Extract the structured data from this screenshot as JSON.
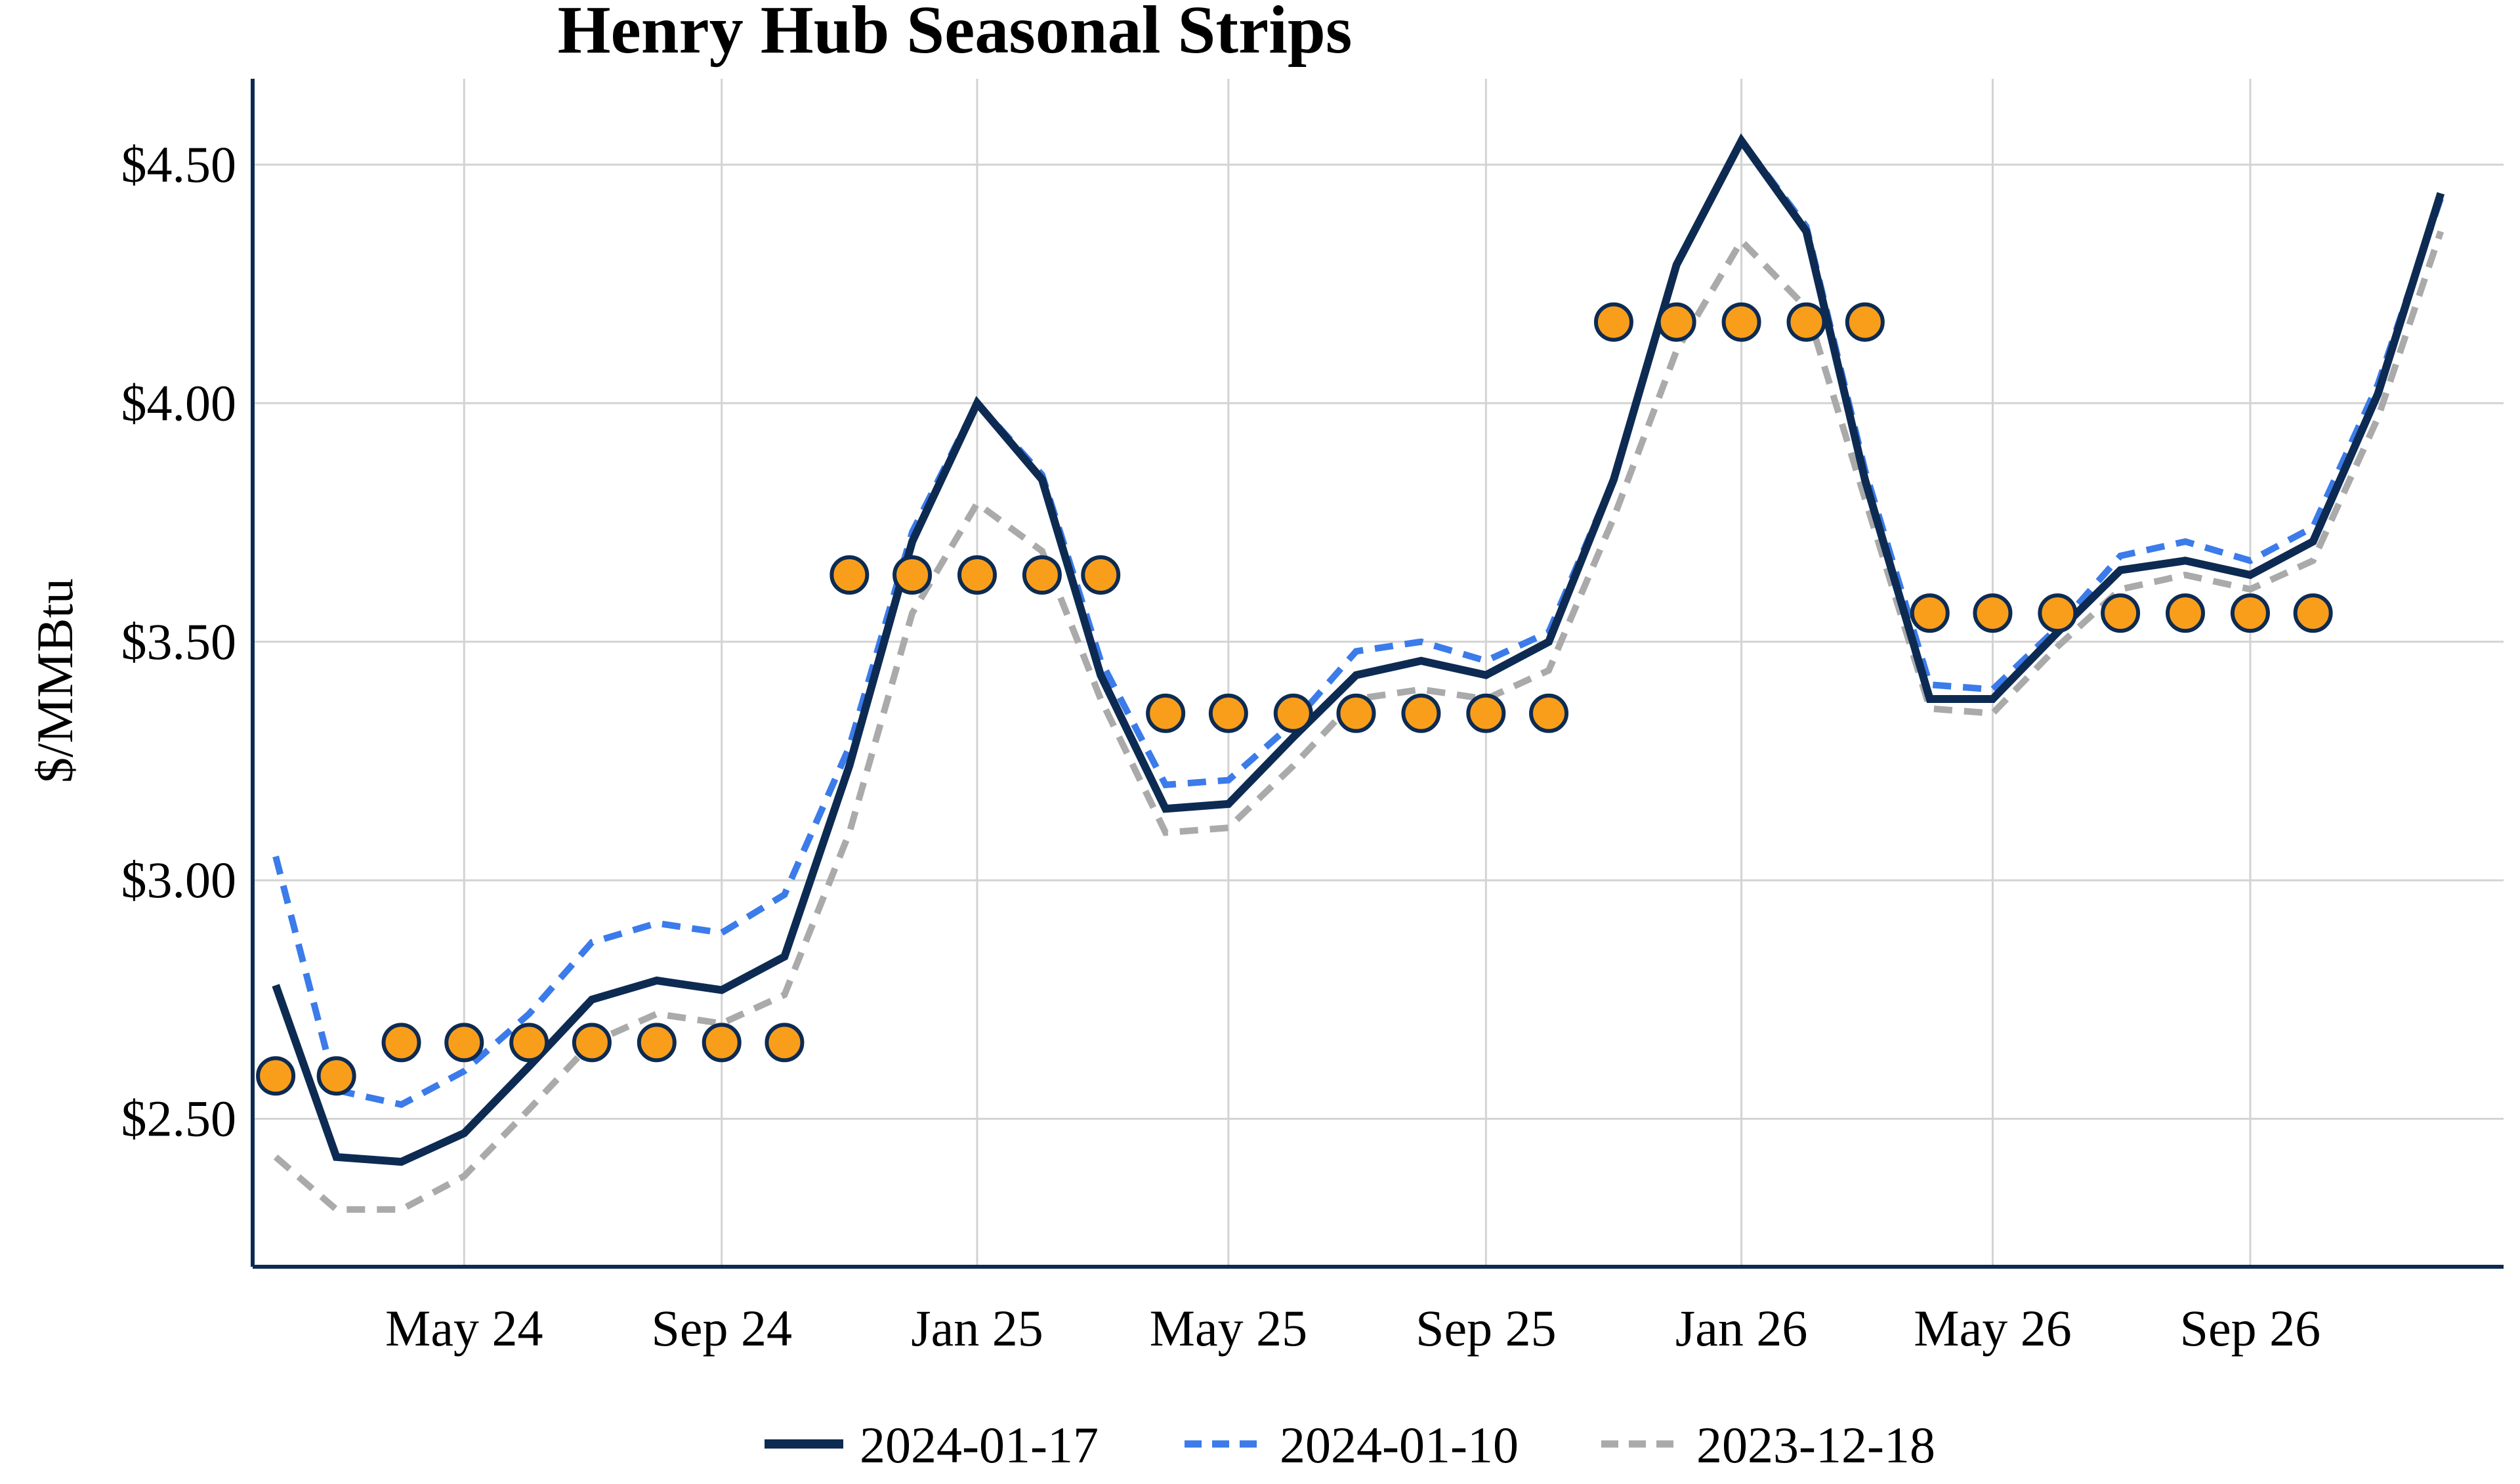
{
  "chart_data": {
    "type": "line",
    "title": "Henry Hub Seasonal Strips",
    "ylabel": "$/MMBtu",
    "xlabel": "",
    "x_start": "2024-02",
    "x_ticks": [
      {
        "date": "2024-05",
        "label": "May 24"
      },
      {
        "date": "2024-09",
        "label": "Sep 24"
      },
      {
        "date": "2025-01",
        "label": "Jan 25"
      },
      {
        "date": "2025-05",
        "label": "May 25"
      },
      {
        "date": "2025-09",
        "label": "Sep 25"
      },
      {
        "date": "2026-01",
        "label": "Jan 26"
      },
      {
        "date": "2026-05",
        "label": "May 26"
      },
      {
        "date": "2026-09",
        "label": "Sep 26"
      }
    ],
    "y_ticks": [
      2.5,
      3.0,
      3.5,
      4.0,
      4.5
    ],
    "y_tick_labels": [
      "$2.50",
      "$3.00",
      "$3.50",
      "$4.00",
      "$4.50"
    ],
    "ylim": [
      2.19,
      4.68
    ],
    "xlim": [
      "2024-01-21",
      "2026-12-31"
    ],
    "grid": true,
    "legend_position": "bottom",
    "series": [
      {
        "name": "2024-01-17",
        "style": "solid",
        "color": "#0d2b52",
        "x": [
          "2024-02",
          "2024-03",
          "2024-04",
          "2024-05",
          "2024-06",
          "2024-07",
          "2024-08",
          "2024-09",
          "2024-10",
          "2024-11",
          "2024-12",
          "2025-01",
          "2025-02",
          "2025-03",
          "2025-04",
          "2025-05",
          "2025-06",
          "2025-07",
          "2025-08",
          "2025-09",
          "2025-10",
          "2025-11",
          "2025-12",
          "2026-01",
          "2026-02",
          "2026-03",
          "2026-04",
          "2026-05",
          "2026-06",
          "2026-07",
          "2026-08",
          "2026-09",
          "2026-10",
          "2026-11",
          "2026-12"
        ],
        "values": [
          2.78,
          2.42,
          2.41,
          2.47,
          2.61,
          2.75,
          2.79,
          2.77,
          2.84,
          3.24,
          3.71,
          4.0,
          3.84,
          3.43,
          3.15,
          3.16,
          3.3,
          3.43,
          3.46,
          3.43,
          3.5,
          3.84,
          4.29,
          4.55,
          4.36,
          3.84,
          3.38,
          3.38,
          3.52,
          3.65,
          3.67,
          3.64,
          3.71,
          4.02,
          4.44
        ]
      },
      {
        "name": "2024-01-10",
        "style": "dash",
        "color": "#3b7bea",
        "x": [
          "2024-02",
          "2024-03",
          "2024-04",
          "2024-05",
          "2024-06",
          "2024-07",
          "2024-08",
          "2024-09",
          "2024-10",
          "2024-11",
          "2024-12",
          "2025-01",
          "2025-02",
          "2025-03",
          "2025-04",
          "2025-05",
          "2025-06",
          "2025-07",
          "2025-08",
          "2025-09",
          "2025-10",
          "2025-11",
          "2025-12",
          "2026-01",
          "2026-02",
          "2026-03",
          "2026-04",
          "2026-05",
          "2026-06",
          "2026-07",
          "2026-08",
          "2026-09",
          "2026-10",
          "2026-11",
          "2026-12"
        ],
        "values": [
          3.05,
          2.56,
          2.53,
          2.6,
          2.72,
          2.87,
          2.91,
          2.89,
          2.97,
          3.28,
          3.73,
          4.0,
          3.85,
          3.46,
          3.2,
          3.21,
          3.33,
          3.48,
          3.5,
          3.46,
          3.52,
          3.84,
          4.29,
          4.55,
          4.37,
          3.86,
          3.41,
          3.4,
          3.53,
          3.68,
          3.71,
          3.67,
          3.74,
          4.04,
          4.43
        ]
      },
      {
        "name": "2023-12-18",
        "style": "dash",
        "color": "#aaaaaa",
        "x": [
          "2024-02",
          "2024-03",
          "2024-04",
          "2024-05",
          "2024-06",
          "2024-07",
          "2024-08",
          "2024-09",
          "2024-10",
          "2024-11",
          "2024-12",
          "2025-01",
          "2025-02",
          "2025-03",
          "2025-04",
          "2025-05",
          "2025-06",
          "2025-07",
          "2025-08",
          "2025-09",
          "2025-10",
          "2025-11",
          "2025-12",
          "2026-01",
          "2026-02",
          "2026-03",
          "2026-04",
          "2026-05",
          "2026-06",
          "2026-07",
          "2026-08",
          "2026-09",
          "2026-10",
          "2026-11",
          "2026-12"
        ],
        "values": [
          2.42,
          2.31,
          2.31,
          2.38,
          2.52,
          2.66,
          2.72,
          2.7,
          2.76,
          3.1,
          3.56,
          3.79,
          3.69,
          3.38,
          3.1,
          3.11,
          3.24,
          3.38,
          3.4,
          3.38,
          3.44,
          3.76,
          4.11,
          4.34,
          4.2,
          3.8,
          3.36,
          3.35,
          3.49,
          3.61,
          3.64,
          3.61,
          3.67,
          3.97,
          4.36
        ]
      }
    ],
    "strip_markers": {
      "color": "#f99e1b",
      "edge_color": "#0d2b52",
      "strips": [
        {
          "x": [
            "2024-02",
            "2024-03"
          ],
          "value": 2.59
        },
        {
          "x": [
            "2024-04",
            "2024-05",
            "2024-06",
            "2024-07",
            "2024-08",
            "2024-09",
            "2024-10"
          ],
          "value": 2.66
        },
        {
          "x": [
            "2024-11",
            "2024-12",
            "2025-01",
            "2025-02",
            "2025-03"
          ],
          "value": 3.64
        },
        {
          "x": [
            "2025-04",
            "2025-05",
            "2025-06",
            "2025-07",
            "2025-08",
            "2025-09",
            "2025-10"
          ],
          "value": 3.35
        },
        {
          "x": [
            "2025-11",
            "2025-12",
            "2026-01",
            "2026-02",
            "2026-03"
          ],
          "value": 4.17
        },
        {
          "x": [
            "2026-04",
            "2026-05",
            "2026-06",
            "2026-07",
            "2026-08",
            "2026-09",
            "2026-10"
          ],
          "value": 3.56
        }
      ]
    }
  },
  "colors": {
    "axis": "#0d2b52",
    "grid": "#d3d3d3",
    "text": "#000000"
  }
}
